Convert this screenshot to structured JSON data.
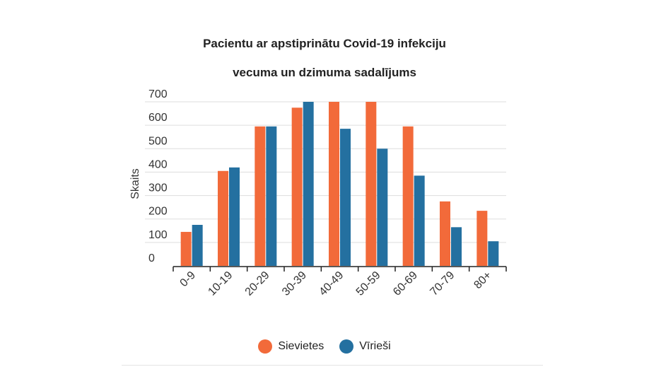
{
  "chart_data": {
    "type": "bar",
    "title": "Pacientu ar apstiprinātu Covid-19 infekciju",
    "subtitle": "vecuma un dzimuma sadalījums",
    "ylabel": "Skaits",
    "xlabel": "",
    "categories": [
      "0-9",
      "10-19",
      "20-29",
      "30-39",
      "40-49",
      "50-59",
      "60-69",
      "70-79",
      "80+"
    ],
    "series": [
      {
        "name": "Sievietes",
        "color": "#f26a3a",
        "values": [
          145,
          405,
          595,
          675,
          700,
          700,
          595,
          275,
          235
        ]
      },
      {
        "name": "Vīrieši",
        "color": "#2470a0",
        "values": [
          175,
          420,
          595,
          700,
          585,
          500,
          385,
          165,
          105
        ]
      }
    ],
    "ylim": [
      0,
      700
    ],
    "yticks": [
      0,
      100,
      200,
      300,
      400,
      500,
      600,
      700
    ],
    "grid": true,
    "legend": "bottom"
  }
}
